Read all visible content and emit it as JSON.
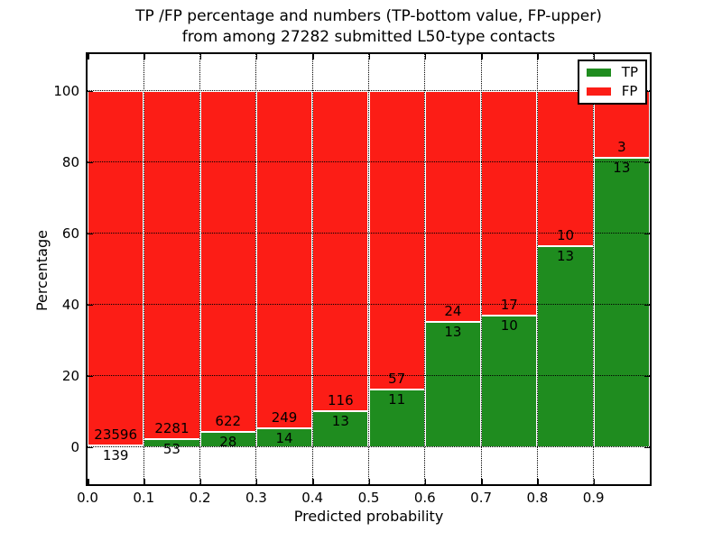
{
  "figure": {
    "title_line1": "TP /FP percentage and numbers (TP-bottom value, FP-upper)",
    "title_line2": "from among 27282 submitted L50-type contacts",
    "xlabel": "Predicted probability",
    "ylabel": "Percentage"
  },
  "colors": {
    "tp_green": "#1f8c1f",
    "fp_red": "#fc1d16",
    "background": "#ffffff",
    "text": "#000000"
  },
  "chart_data": {
    "type": "bar",
    "subtype": "stacked-percentage-histogram",
    "title": "TP /FP percentage and numbers (TP-bottom value, FP-upper) from among 27282 submitted L50-type contacts",
    "xlabel": "Predicted probability",
    "ylabel": "Percentage",
    "total_contacts": 27282,
    "bins": [
      "0.0-0.1",
      "0.1-0.2",
      "0.2-0.3",
      "0.3-0.4",
      "0.4-0.5",
      "0.5-0.6",
      "0.6-0.7",
      "0.7-0.8",
      "0.8-0.9",
      "0.9-1.0"
    ],
    "x_tick_labels": [
      "0.0",
      "0.1",
      "0.2",
      "0.3",
      "0.4",
      "0.5",
      "0.6",
      "0.7",
      "0.8",
      "0.9"
    ],
    "y_ticks": [
      0,
      20,
      40,
      60,
      80,
      100
    ],
    "y_tick_labels": [
      "0",
      "20",
      "40",
      "60",
      "80",
      "100"
    ],
    "ylim": [
      -10.4,
      110.3
    ],
    "xlim": [
      0.0,
      1.0
    ],
    "grid": true,
    "series": [
      {
        "name": "TP",
        "color": "#1f8c1f",
        "counts": [
          139,
          53,
          28,
          14,
          13,
          11,
          13,
          10,
          13,
          13
        ]
      },
      {
        "name": "FP",
        "color": "#fc1d16",
        "counts": [
          23596,
          2281,
          622,
          249,
          116,
          57,
          24,
          17,
          10,
          3
        ]
      }
    ],
    "tp_percentages": [
      0.59,
      2.27,
      4.31,
      5.32,
      10.08,
      16.18,
      35.14,
      37.04,
      56.52,
      81.25
    ],
    "legend": {
      "position": "upper-right",
      "entries": [
        {
          "label": "TP",
          "color": "#1f8c1f"
        },
        {
          "label": "FP",
          "color": "#fc1d16"
        }
      ]
    }
  }
}
